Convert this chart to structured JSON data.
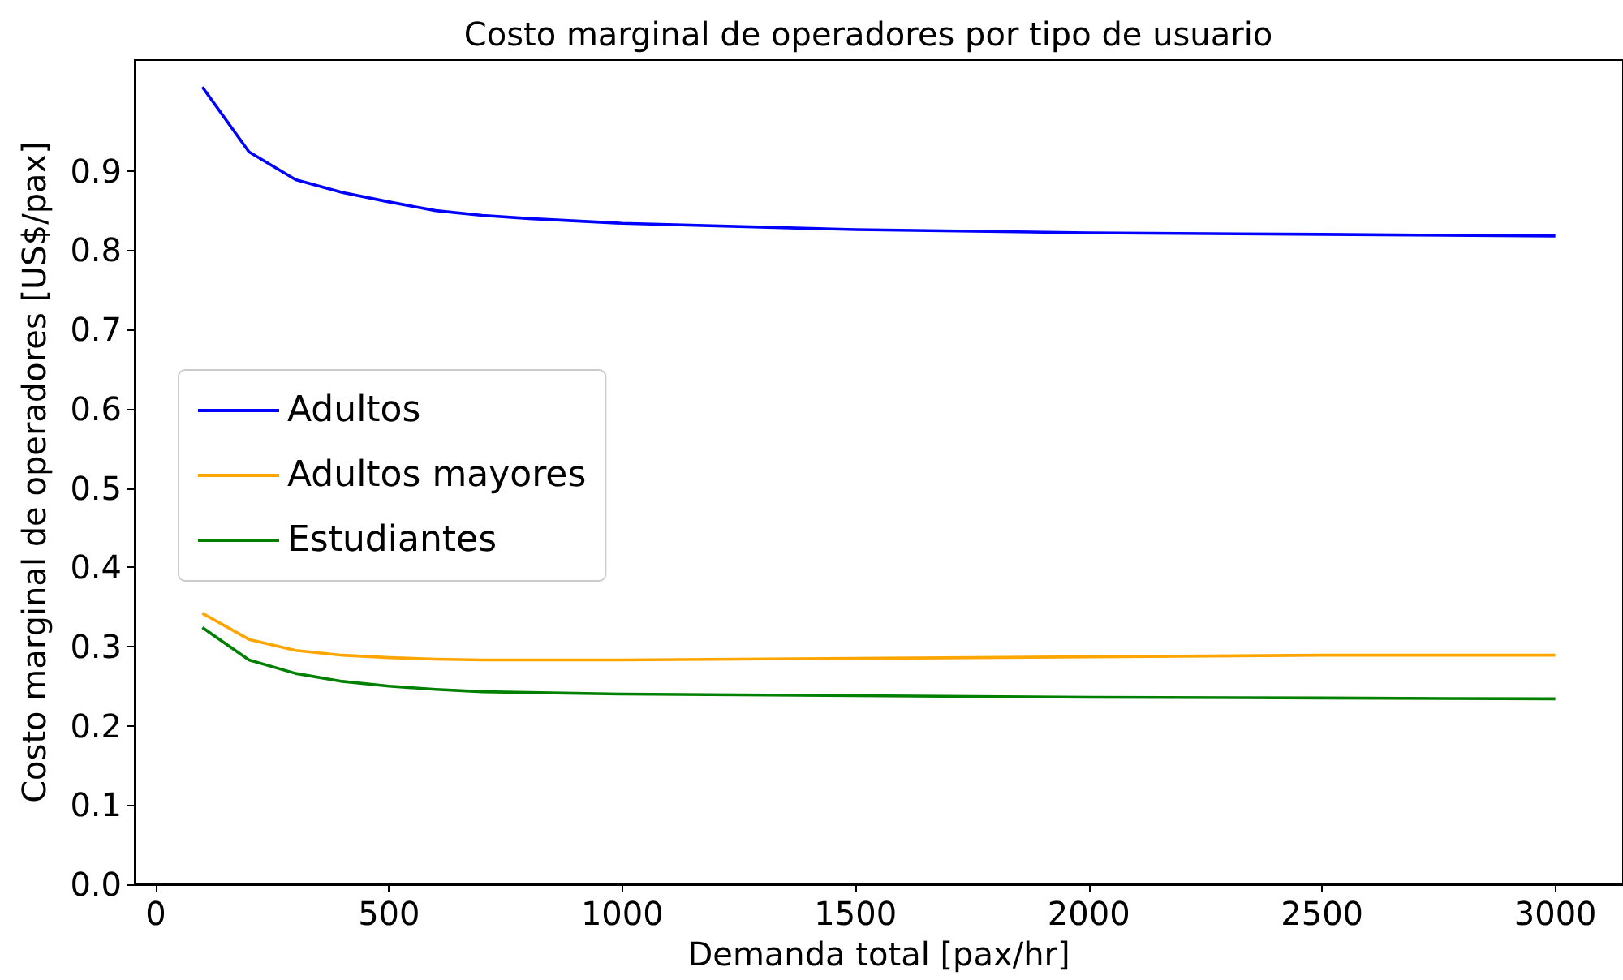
{
  "chart_data": {
    "type": "line",
    "title": "Costo marginal de operadores por tipo de usuario",
    "xlabel": "Demanda total [pax/hr]",
    "ylabel": "Costo marginal de operadores [US$/pax]",
    "x": [
      100,
      200,
      300,
      400,
      500,
      600,
      700,
      800,
      1000,
      1500,
      2000,
      2500,
      3000
    ],
    "series": [
      {
        "name": "Adultos",
        "color": "#0000ff",
        "values": [
          1.006,
          0.924,
          0.889,
          0.873,
          0.861,
          0.85,
          0.844,
          0.84,
          0.834,
          0.826,
          0.822,
          0.82,
          0.818
        ]
      },
      {
        "name": "Adultos mayores",
        "color": "#ffa500",
        "values": [
          0.342,
          0.309,
          0.295,
          0.289,
          0.286,
          0.284,
          0.283,
          0.283,
          0.283,
          0.285,
          0.287,
          0.289,
          0.289
        ]
      },
      {
        "name": "Estudiantes",
        "color": "#008000",
        "values": [
          0.324,
          0.283,
          0.266,
          0.256,
          0.25,
          0.246,
          0.243,
          0.242,
          0.24,
          0.238,
          0.236,
          0.235,
          0.234
        ]
      }
    ],
    "xlim": [
      -45,
      3145
    ],
    "xticks": [
      0,
      500,
      1000,
      1500,
      2000,
      2500,
      3000
    ],
    "ylim": [
      0,
      1.04
    ],
    "yticks": [
      {
        "value": 0,
        "label": "0.0"
      },
      0.1,
      0.2,
      0.3,
      0.4,
      0.5,
      0.6,
      0.7,
      0.8,
      0.9
    ],
    "grid": false,
    "legend": "left",
    "marker": "none",
    "line_style": "solid"
  }
}
